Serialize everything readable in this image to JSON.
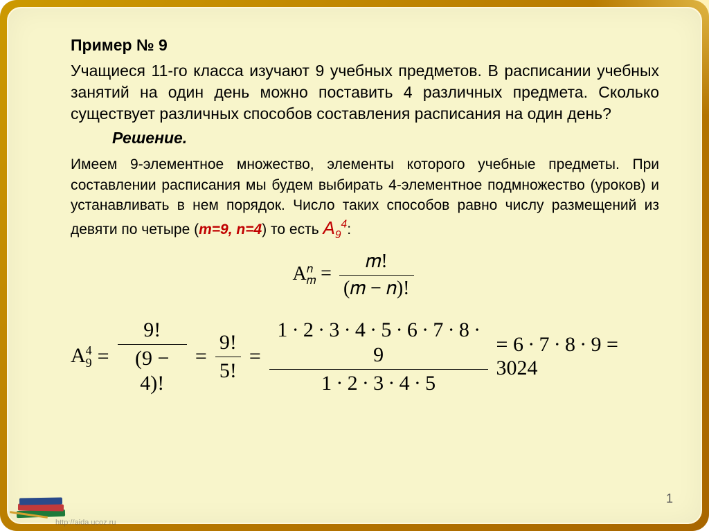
{
  "slide": {
    "title": "Пример № 9",
    "problem": "Учащиеся 11-го класса изучают 9 учебных предметов. В расписании учебных занятий на один день можно поставить 4 различных предмета. Сколько существует различных способов составления расписания на один день?",
    "solution_label": "Решение.",
    "solution_text_1": "Имеем 9-элементное множество, элементы которого учебные предметы. При составлении расписания мы будем выбирать 4-элементное подмножество (уроков) и устанавливать в нем порядок. Число таких способов равно числу размещений из девяти по четыре (",
    "mn_text": "m=9, n=4",
    "solution_text_2": ")  то есть ",
    "a_sym": "А",
    "a_sub": "9",
    "a_sup": "4",
    "colon": ":",
    "formula_general": {
      "lhs_base": "A",
      "lhs_sup": "𝑛",
      "lhs_sub": "𝑚",
      "num": "𝑚!",
      "den": "(𝑚 − 𝑛)!"
    },
    "formula_calc": {
      "lhs_base": "A",
      "lhs_sup": "4",
      "lhs_sub": "9",
      "eq": " = ",
      "f1_num": "9!",
      "f1_den": "(9 − 4)!",
      "f2_num": "9!",
      "f2_den": "5!",
      "f3_num": "1 ∙ 2 ∙ 3 ∙ 4 ∙ 5 ∙ 6 ∙ 7 ∙ 8 ∙ 9",
      "f3_den": "1 ∙ 2 ∙ 3 ∙ 4 ∙ 5",
      "tail": " = 6 ∙ 7 ∙ 8 ∙ 9 = 3024"
    },
    "watermark": "http://aida.ucoz.ru",
    "page_number": "1"
  },
  "colors": {
    "frame_gradient_start": "#cc9900",
    "frame_gradient_end": "#a86600",
    "inner_bg": "#f8f5cb",
    "accent_red": "#c00000",
    "text": "#000000",
    "page_num": "#5a5a5a"
  },
  "typography": {
    "title_fontsize": 23,
    "body_fontsize": 23,
    "solution_fontsize": 21,
    "formula_fontsize": 30,
    "font_family": "Arial"
  }
}
